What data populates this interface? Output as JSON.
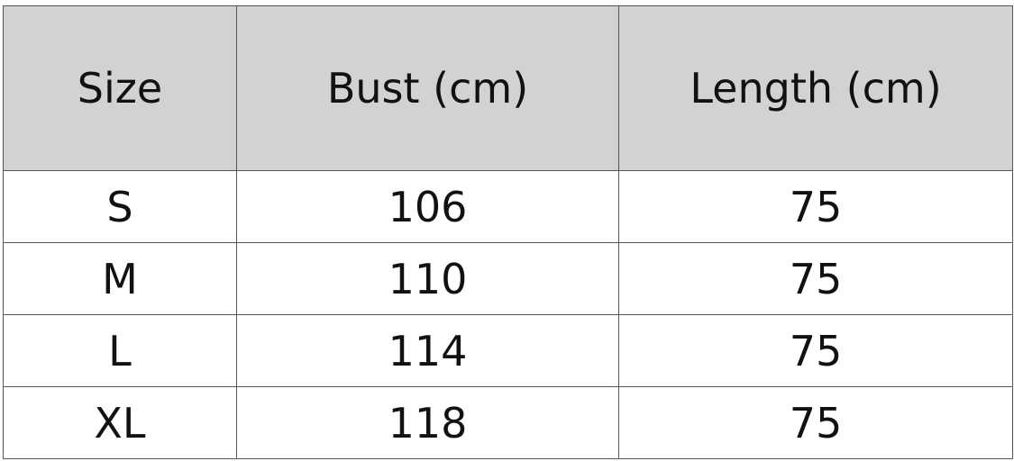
{
  "table": {
    "header": [
      "Size",
      "Bust (cm)",
      "Length (cm)"
    ],
    "rows": [
      [
        "S",
        106,
        75
      ],
      [
        "M",
        110,
        75
      ],
      [
        "L",
        114,
        75
      ],
      [
        "XL",
        118,
        75
      ]
    ]
  }
}
